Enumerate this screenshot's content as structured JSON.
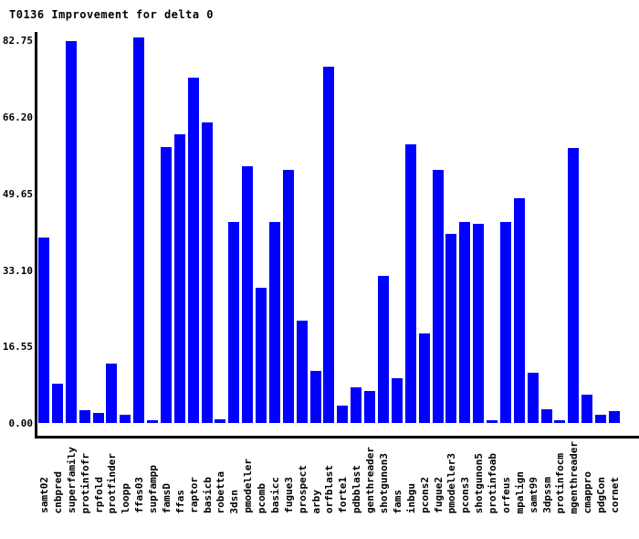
{
  "chart_data": {
    "type": "bar",
    "title": "T0136 Improvement for delta 0",
    "categories": [
      "samt02",
      "cnbpred",
      "superfamily",
      "protinfofr",
      "rpfold",
      "protfinder",
      "loopp",
      "ffas03",
      "supfampp",
      "famsD",
      "ffas",
      "raptor",
      "basicb",
      "robetta",
      "3dsn",
      "pmodeller",
      "pcomb",
      "basicc",
      "fugue3",
      "prospect",
      "arby",
      "orfblast",
      "forte1",
      "pdbblast",
      "genthreader",
      "shotgunon3",
      "fams",
      "inbgu",
      "pcons2",
      "fugue2",
      "pmodeller3",
      "pcons3",
      "shotgunon5",
      "protinfoab",
      "orfeus",
      "mpalign",
      "samt99",
      "3dpssm",
      "protinfocm",
      "mgenthreader",
      "cmappro",
      "pdgCon",
      "cornet"
    ],
    "values": [
      40.1,
      8.4,
      82.6,
      2.7,
      2.2,
      12.8,
      1.8,
      83.4,
      0.6,
      59.6,
      62.5,
      74.7,
      65.1,
      0.8,
      43.4,
      55.6,
      29.2,
      43.4,
      54.8,
      22.2,
      11.2,
      77.1,
      3.7,
      7.8,
      6.9,
      31.8,
      9.7,
      60.3,
      19.4,
      54.8,
      41.0,
      43.4,
      43.0,
      0.6,
      43.4,
      48.6,
      10.9,
      3.0,
      0.5,
      59.5,
      6.1,
      1.7,
      2.5
    ],
    "xlabel": "",
    "ylabel": "",
    "y_tick_labels": [
      "0.00",
      "16.55",
      "33.10",
      "49.65",
      "66.20",
      "82.75"
    ],
    "y_tick_values": [
      0,
      16.55,
      33.1,
      49.65,
      66.2,
      82.75
    ],
    "ylim": [
      0,
      84.5
    ],
    "grid": false,
    "legend": false,
    "bar_color": "#0000ff",
    "axis_color": "#000000",
    "background_color": "#ffffff",
    "text_color": "#000000"
  }
}
